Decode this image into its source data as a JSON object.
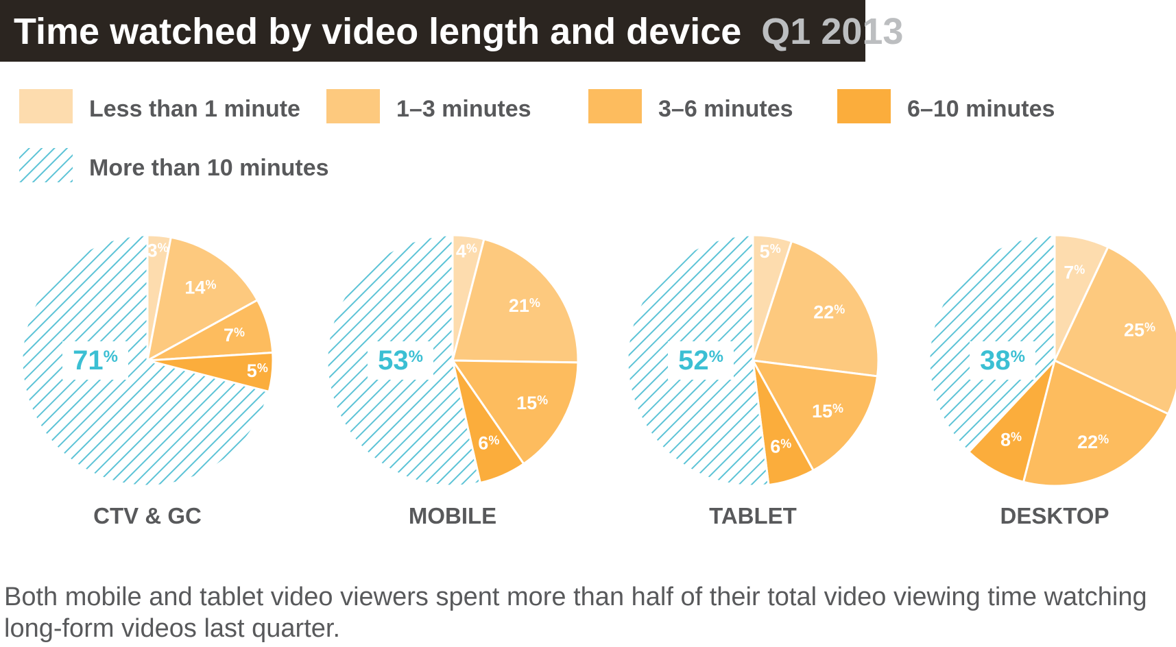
{
  "title": "Time watched by video length and device",
  "title_highlight": "Q1 2013",
  "caption": "Both mobile and tablet video viewers spent more than half of their total video viewing time watching long-form videos last quarter.",
  "colors": {
    "title_bg": "#2b2520",
    "title_text": "#ffffff",
    "title_highlight": "#bcbec0",
    "hatch": "#5cc3d6",
    "big_label": "#3bbfd3",
    "text": "#58595b"
  },
  "chart_data": {
    "type": "pie",
    "legend": [
      {
        "name": "Less than 1 minute",
        "color": "#fddcae"
      },
      {
        "name": "1–3 minutes",
        "color": "#fdc97e"
      },
      {
        "name": "3–6 minutes",
        "color": "#fdbc5e"
      },
      {
        "name": "6–10 minutes",
        "color": "#fbad3c"
      },
      {
        "name": "More than 10 minutes",
        "pattern": "hatch"
      }
    ],
    "pies": [
      {
        "name": "CTV & GC",
        "values": [
          3,
          14,
          7,
          5,
          71
        ]
      },
      {
        "name": "MOBILE",
        "values": [
          4,
          21,
          15,
          6,
          53
        ]
      },
      {
        "name": "TABLET",
        "values": [
          5,
          22,
          15,
          6,
          52
        ]
      },
      {
        "name": "DESKTOP",
        "values": [
          7,
          25,
          22,
          8,
          38
        ]
      }
    ],
    "value_suffix": "%"
  }
}
